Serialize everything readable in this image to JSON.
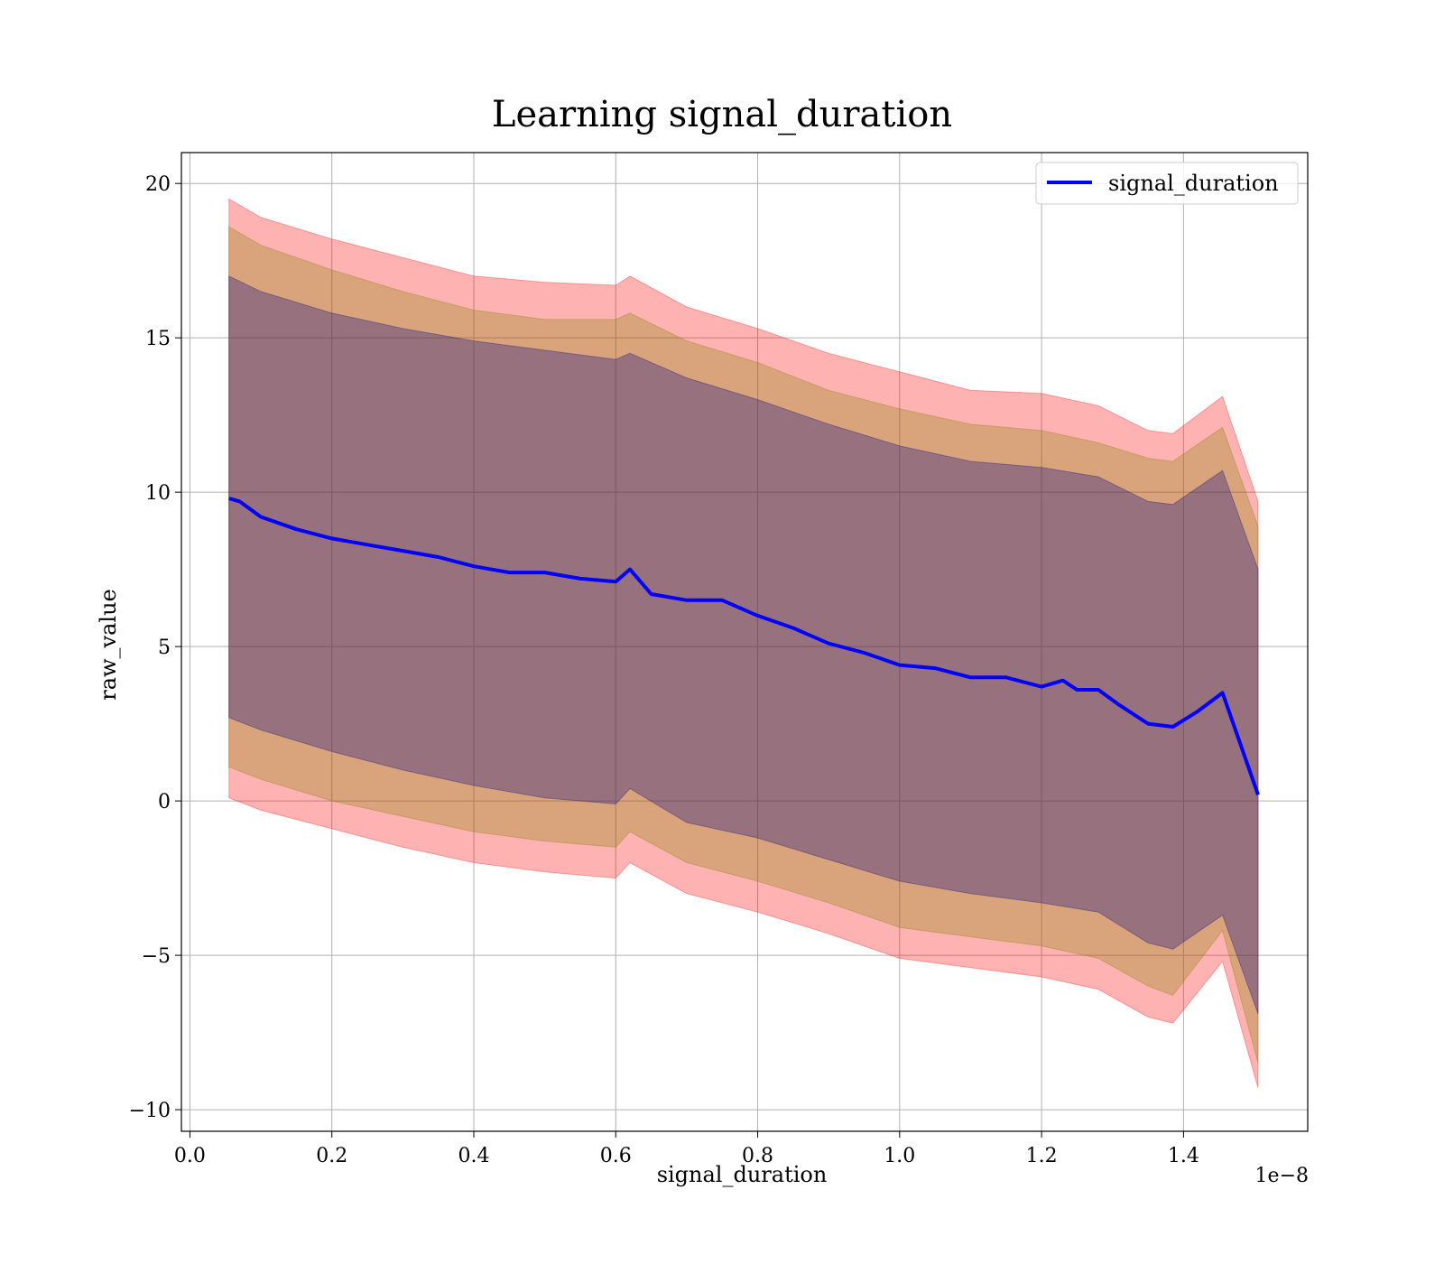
{
  "chart_data": {
    "type": "area",
    "title": "Learning signal_duration",
    "xlabel": "signal_duration",
    "ylabel": "raw_value",
    "x_offset_label": "1e−8",
    "xlim": [
      -1.2e-10,
      1.575e-08
    ],
    "ylim": [
      -10.7,
      21.0
    ],
    "grid": true,
    "legend": {
      "position": "top-right",
      "entries": [
        "signal_duration"
      ]
    },
    "x_ticks": [
      {
        "value": 0.0,
        "label": "0.0"
      },
      {
        "value": 2e-09,
        "label": "0.2"
      },
      {
        "value": 4e-09,
        "label": "0.4"
      },
      {
        "value": 6e-09,
        "label": "0.6"
      },
      {
        "value": 8e-09,
        "label": "0.8"
      },
      {
        "value": 1e-08,
        "label": "1.0"
      },
      {
        "value": 1.2e-08,
        "label": "1.2"
      },
      {
        "value": 1.4e-08,
        "label": "1.4"
      }
    ],
    "y_ticks": [
      {
        "value": 20,
        "label": "20"
      },
      {
        "value": 15,
        "label": "15"
      },
      {
        "value": 10,
        "label": "10"
      },
      {
        "value": 5,
        "label": "5"
      },
      {
        "value": 0,
        "label": "0"
      },
      {
        "value": -5,
        "label": "−5"
      },
      {
        "value": -10,
        "label": "−10"
      }
    ],
    "series": [
      {
        "name": "signal_duration",
        "color": "#0000ff",
        "x": [
          5.5e-10,
          7e-10,
          1e-09,
          1.5e-09,
          2e-09,
          2.5e-09,
          3e-09,
          3.5e-09,
          4e-09,
          4.5e-09,
          5e-09,
          5.5e-09,
          6e-09,
          6.2e-09,
          6.5e-09,
          7e-09,
          7.5e-09,
          8e-09,
          8.5e-09,
          9e-09,
          9.5e-09,
          1e-08,
          1.05e-08,
          1.1e-08,
          1.15e-08,
          1.2e-08,
          1.23e-08,
          1.25e-08,
          1.28e-08,
          1.31e-08,
          1.35e-08,
          1.385e-08,
          1.42e-08,
          1.455e-08,
          1.505e-08
        ],
        "y": [
          9.8,
          9.7,
          9.2,
          8.8,
          8.5,
          8.3,
          8.1,
          7.9,
          7.6,
          7.4,
          7.4,
          7.2,
          7.1,
          7.5,
          6.7,
          6.5,
          6.5,
          6.0,
          5.6,
          5.1,
          4.8,
          4.4,
          4.3,
          4.0,
          4.0,
          3.7,
          3.9,
          3.6,
          3.6,
          3.1,
          2.5,
          2.4,
          2.9,
          3.5,
          0.2
        ]
      }
    ],
    "bands": [
      {
        "color": "#ff0000",
        "opacity": 0.3,
        "x": [
          5.5e-10,
          1e-09,
          2e-09,
          3e-09,
          4e-09,
          5e-09,
          6e-09,
          6.2e-09,
          7e-09,
          8e-09,
          9e-09,
          1e-08,
          1.1e-08,
          1.2e-08,
          1.28e-08,
          1.35e-08,
          1.385e-08,
          1.455e-08,
          1.505e-08
        ],
        "upper": [
          19.5,
          18.9,
          18.2,
          17.6,
          17.0,
          16.8,
          16.7,
          17.0,
          16.0,
          15.3,
          14.5,
          13.9,
          13.3,
          13.2,
          12.8,
          12.0,
          11.9,
          13.1,
          9.7
        ],
        "lower": [
          0.1,
          -0.3,
          -0.9,
          -1.5,
          -2.0,
          -2.3,
          -2.5,
          -2.0,
          -3.0,
          -3.6,
          -4.3,
          -5.1,
          -5.4,
          -5.7,
          -6.1,
          -7.0,
          -7.2,
          -5.2,
          -9.3
        ]
      },
      {
        "color": "#808000",
        "opacity": 0.3,
        "x": [
          5.5e-10,
          1e-09,
          2e-09,
          3e-09,
          4e-09,
          5e-09,
          6e-09,
          6.2e-09,
          7e-09,
          8e-09,
          9e-09,
          1e-08,
          1.1e-08,
          1.2e-08,
          1.28e-08,
          1.35e-08,
          1.385e-08,
          1.455e-08,
          1.505e-08
        ],
        "upper": [
          18.6,
          18.0,
          17.2,
          16.5,
          15.9,
          15.6,
          15.6,
          15.8,
          14.9,
          14.2,
          13.3,
          12.7,
          12.2,
          12.0,
          11.6,
          11.1,
          11.0,
          12.1,
          8.9
        ],
        "lower": [
          1.1,
          0.7,
          0.0,
          -0.5,
          -1.0,
          -1.3,
          -1.5,
          -1.0,
          -2.0,
          -2.6,
          -3.3,
          -4.1,
          -4.4,
          -4.7,
          -5.1,
          -6.0,
          -6.3,
          -4.2,
          -8.5
        ]
      },
      {
        "color": "#000080",
        "opacity": 0.3,
        "x": [
          5.5e-10,
          1e-09,
          2e-09,
          3e-09,
          4e-09,
          5e-09,
          6e-09,
          6.2e-09,
          7e-09,
          8e-09,
          9e-09,
          1e-08,
          1.1e-08,
          1.2e-08,
          1.28e-08,
          1.35e-08,
          1.385e-08,
          1.455e-08,
          1.505e-08
        ],
        "upper": [
          17.0,
          16.5,
          15.8,
          15.3,
          14.9,
          14.6,
          14.3,
          14.5,
          13.7,
          13.0,
          12.2,
          11.5,
          11.0,
          10.8,
          10.5,
          9.7,
          9.6,
          10.7,
          7.5
        ],
        "lower": [
          2.7,
          2.3,
          1.6,
          1.0,
          0.5,
          0.1,
          -0.1,
          0.4,
          -0.7,
          -1.2,
          -1.9,
          -2.6,
          -3.0,
          -3.3,
          -3.6,
          -4.6,
          -4.8,
          -3.7,
          -6.9
        ]
      }
    ]
  }
}
